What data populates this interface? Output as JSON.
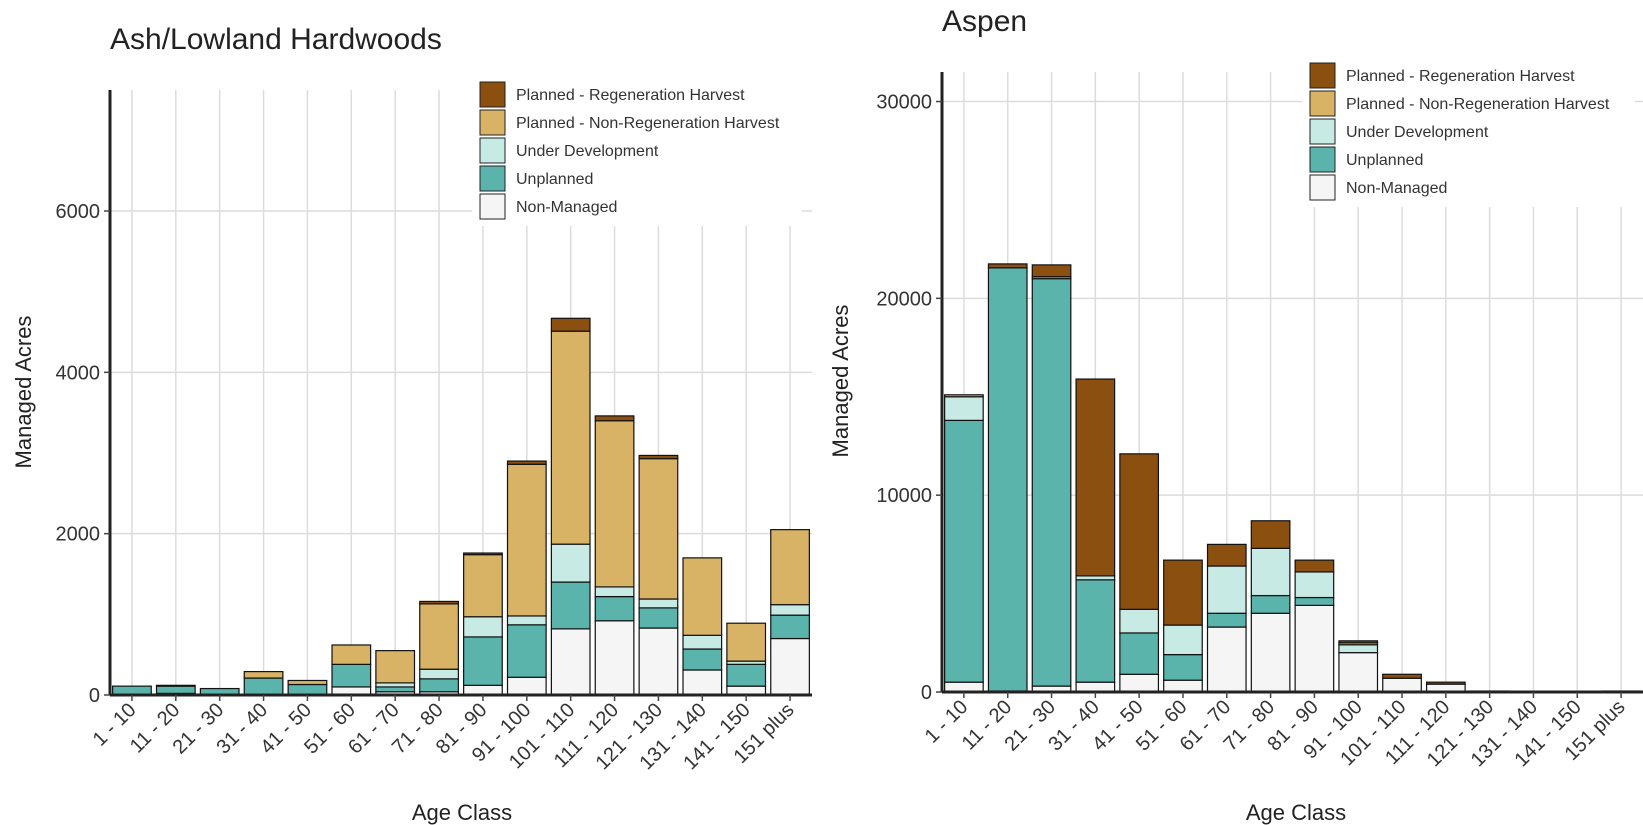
{
  "chart_data": [
    {
      "type": "bar",
      "stacked": true,
      "title": "Ash/Lowland Hardwoods",
      "xlabel": "Age Class",
      "ylabel": "Managed Acres",
      "ylim": [
        0,
        7500
      ],
      "yticks": [
        0,
        2000,
        4000,
        6000
      ],
      "grid": true,
      "legend_position": "top-right",
      "categories": [
        "1 - 10",
        "11 - 20",
        "21 - 30",
        "31 - 40",
        "41 - 50",
        "51 - 60",
        "61 - 70",
        "71 - 80",
        "81 - 90",
        "91 - 100",
        "101 - 110",
        "111 - 120",
        "121 - 130",
        "131 - 140",
        "141 - 150",
        "151 plus"
      ],
      "series": [
        {
          "name": "Non-Managed",
          "values": [
            0,
            20,
            0,
            0,
            0,
            100,
            40,
            40,
            120,
            220,
            820,
            920,
            830,
            310,
            110,
            700
          ]
        },
        {
          "name": "Unplanned",
          "values": [
            110,
            90,
            80,
            210,
            130,
            280,
            60,
            160,
            600,
            650,
            580,
            300,
            250,
            260,
            270,
            290
          ]
        },
        {
          "name": "Under Development",
          "values": [
            0,
            0,
            0,
            0,
            0,
            0,
            50,
            120,
            250,
            110,
            470,
            120,
            110,
            170,
            40,
            130
          ]
        },
        {
          "name": "Planned - Non-Regeneration Harvest",
          "values": [
            0,
            0,
            0,
            80,
            50,
            240,
            400,
            810,
            770,
            1880,
            2640,
            2060,
            1740,
            960,
            470,
            930
          ]
        },
        {
          "name": "Planned - Regeneration Harvest",
          "values": [
            0,
            10,
            0,
            0,
            0,
            0,
            0,
            30,
            20,
            40,
            160,
            60,
            40,
            0,
            0,
            0
          ]
        }
      ],
      "colors": {
        "Planned - Regeneration Harvest": "#8B4F0F",
        "Planned - Non-Regeneration Harvest": "#D8B365",
        "Under Development": "#C7EAE5",
        "Unplanned": "#5AB4AC",
        "Non-Managed": "#F5F5F5"
      }
    },
    {
      "type": "bar",
      "stacked": true,
      "title": "Aspen",
      "xlabel": "Age Class",
      "ylabel": "Managed Acres",
      "ylim": [
        0,
        31500
      ],
      "yticks": [
        0,
        10000,
        20000,
        30000
      ],
      "grid": true,
      "legend_position": "top-right",
      "categories": [
        "1 - 10",
        "11 - 20",
        "21 - 30",
        "31 - 40",
        "41 - 50",
        "51 - 60",
        "61 - 70",
        "71 - 80",
        "81 - 90",
        "91 - 100",
        "101 - 110",
        "111 - 120",
        "121 - 130",
        "131 - 140",
        "141 - 150",
        "151 plus"
      ],
      "series": [
        {
          "name": "Non-Managed",
          "values": [
            500,
            50,
            300,
            500,
            900,
            600,
            3300,
            4000,
            4400,
            2000,
            700,
            400,
            50,
            0,
            0,
            50
          ]
        },
        {
          "name": "Unplanned",
          "values": [
            13300,
            21500,
            20700,
            5200,
            2100,
            1300,
            700,
            900,
            400,
            0,
            0,
            0,
            0,
            0,
            0,
            0
          ]
        },
        {
          "name": "Under Development",
          "values": [
            1200,
            0,
            0,
            200,
            1200,
            1500,
            2400,
            2400,
            1300,
            400,
            0,
            0,
            0,
            0,
            0,
            0
          ]
        },
        {
          "name": "Planned - Non-Regeneration Harvest",
          "values": [
            100,
            0,
            100,
            0,
            0,
            0,
            0,
            0,
            0,
            100,
            0,
            0,
            0,
            0,
            0,
            0
          ]
        },
        {
          "name": "Planned - Regeneration Harvest",
          "values": [
            0,
            200,
            600,
            10000,
            7900,
            3300,
            1100,
            1400,
            600,
            100,
            200,
            100,
            0,
            0,
            0,
            0
          ]
        }
      ],
      "colors": {
        "Planned - Regeneration Harvest": "#8B4F0F",
        "Planned - Non-Regeneration Harvest": "#D8B365",
        "Under Development": "#C7EAE5",
        "Unplanned": "#5AB4AC",
        "Non-Managed": "#F5F5F5"
      }
    }
  ],
  "legend_order": [
    "Planned - Regeneration Harvest",
    "Planned - Non-Regeneration Harvest",
    "Under Development",
    "Unplanned",
    "Non-Managed"
  ]
}
